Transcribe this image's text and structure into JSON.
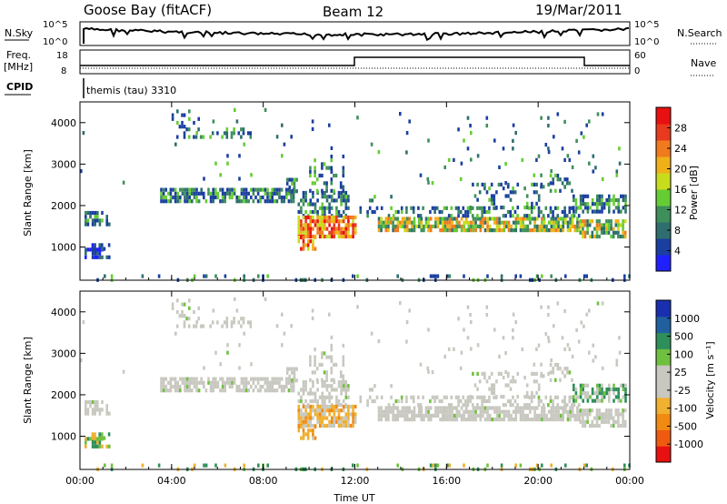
{
  "header": {
    "station": "Goose Bay (fitACF)",
    "beam": "Beam 12",
    "date": "19/Mar/2011"
  },
  "top_panels": {
    "nsky_label": "N.Sky",
    "nsearch_label": "N.Search",
    "nsky_ticks": [
      "10^5",
      "10^0"
    ],
    "nsearch_ticks": [
      "10^5",
      "10^0"
    ],
    "freq_label_1": "Freq.",
    "freq_label_2": "[MHz]",
    "freq_ticks": [
      "18",
      "8"
    ],
    "nave_label": "Nave",
    "nave_ticks": [
      "60",
      "0"
    ],
    "cpid_label": "CPID",
    "cpid_value": "themis (tau) 3310"
  },
  "colors": {
    "power_scale": [
      "#2020ff",
      "#1a3fa0",
      "#2e6e6e",
      "#3e8f5a",
      "#66cc33",
      "#c8dc1e",
      "#f0b018",
      "#f07a1e",
      "#e83a1e",
      "#e81010"
    ],
    "velocity_scale": [
      "#e81010",
      "#f05a10",
      "#f08a10",
      "#f0b030",
      "#c8c8c0",
      "#c8c8c0",
      "#70c040",
      "#2e8f5a",
      "#2060a0",
      "#1a2fb0"
    ]
  },
  "chart_data": [
    {
      "type": "heatmap",
      "panel": "power",
      "ylabel": "Slant Range [km]",
      "xlabel": "Time UT",
      "x_ticks": [
        "00:00",
        "04:00",
        "08:00",
        "12:00",
        "16:00",
        "20:00",
        "00:00"
      ],
      "y_ticks": [
        "1000",
        "2000",
        "3000",
        "4000"
      ],
      "ylim": [
        200,
        4500
      ],
      "xlim_hours": [
        0,
        24
      ],
      "colorbar_label": "Power [dB]",
      "colorbar_ticks": [
        "28",
        "24",
        "20",
        "16",
        "12",
        "8",
        "4"
      ],
      "colorbar_range": [
        0,
        32
      ]
    },
    {
      "type": "heatmap",
      "panel": "velocity",
      "ylabel": "Slant Range [km]",
      "xlabel": "Time UT",
      "x_ticks": [
        "00:00",
        "04:00",
        "08:00",
        "12:00",
        "16:00",
        "20:00",
        "00:00"
      ],
      "y_ticks": [
        "1000",
        "2000",
        "3000",
        "4000"
      ],
      "ylim": [
        200,
        4500
      ],
      "xlim_hours": [
        0,
        24
      ],
      "colorbar_label": "Velocity [m s⁻¹]",
      "colorbar_ticks": [
        "1000",
        "500",
        "100",
        "25",
        "-25",
        "-100",
        "-500",
        "-1000"
      ]
    }
  ],
  "x_axis": {
    "ticks": [
      "00:00",
      "04:00",
      "08:00",
      "12:00",
      "16:00",
      "20:00",
      "00:00"
    ],
    "label": "Time UT"
  }
}
